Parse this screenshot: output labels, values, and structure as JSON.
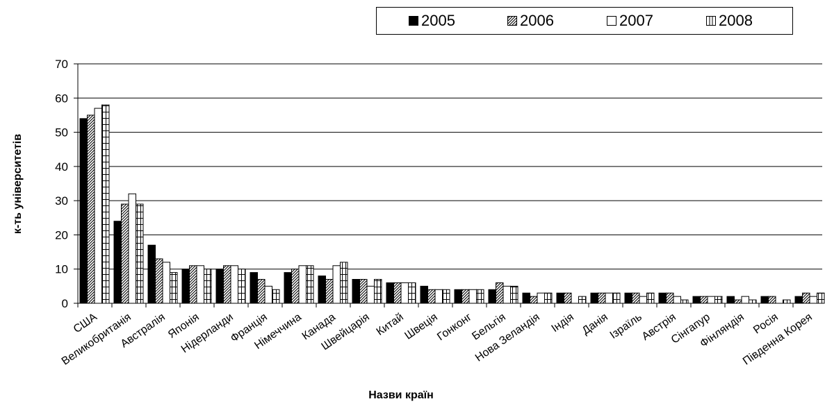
{
  "chart_data": {
    "type": "bar",
    "title": "",
    "xlabel": "Назви країн",
    "ylabel": "к-ть університетів",
    "ylim": [
      0,
      70
    ],
    "yticks": [
      0,
      10,
      20,
      30,
      40,
      50,
      60,
      70
    ],
    "grid": true,
    "legend_position": "top-right",
    "categories": [
      "США",
      "Великобританія",
      "Австралія",
      "Японія",
      "Нідерланди",
      "Франція",
      "Німеччина",
      "Канада",
      "Швейцарія",
      "Китай",
      "Швеція",
      "Гонконг",
      "Бельгія",
      "Нова Зеландія",
      "Індія",
      "Данія",
      "Ізраїль",
      "Австрія",
      "Сінгапур",
      "Фінляндія",
      "Росія",
      "Південна Корея"
    ],
    "series": [
      {
        "name": "2005",
        "pattern": "solid",
        "values": [
          54,
          24,
          17,
          10,
          10,
          9,
          9,
          8,
          7,
          6,
          5,
          4,
          4,
          3,
          3,
          3,
          3,
          3,
          2,
          2,
          2,
          2
        ]
      },
      {
        "name": "2006",
        "pattern": "diagonal",
        "values": [
          55,
          29,
          13,
          11,
          11,
          7,
          10,
          7,
          7,
          6,
          4,
          4,
          6,
          2,
          3,
          3,
          3,
          3,
          2,
          1,
          2,
          3
        ]
      },
      {
        "name": "2007",
        "pattern": "white",
        "values": [
          57,
          32,
          12,
          11,
          11,
          5,
          11,
          11,
          5,
          6,
          4,
          4,
          5,
          3,
          0,
          3,
          2,
          2,
          2,
          2,
          0,
          2
        ]
      },
      {
        "name": "2008",
        "pattern": "vertical",
        "values": [
          58,
          29,
          9,
          10,
          10,
          4,
          11,
          12,
          7,
          6,
          4,
          4,
          5,
          3,
          2,
          3,
          3,
          1,
          2,
          1,
          1,
          3
        ]
      }
    ]
  }
}
